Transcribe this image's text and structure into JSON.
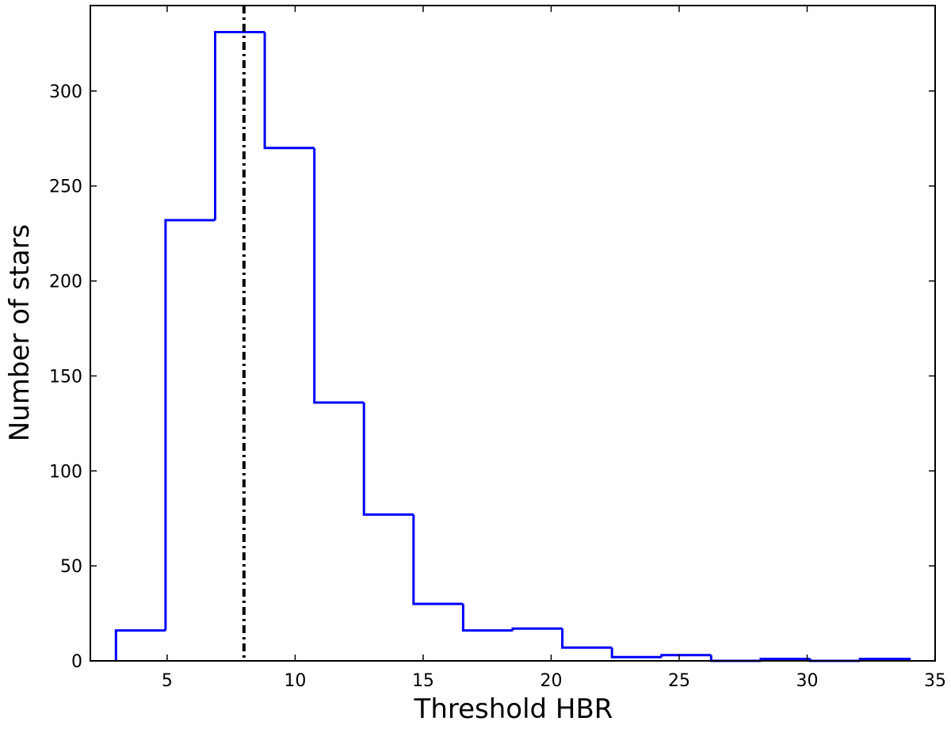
{
  "chart_data": {
    "type": "histogram",
    "xlabel": "Threshold HBR",
    "ylabel": "Number of stars",
    "bins": [
      3,
      4.9375,
      6.875,
      8.8125,
      10.75,
      12.6875,
      14.625,
      16.5625,
      18.5,
      20.4375,
      22.375,
      24.3125,
      26.25,
      28.1875,
      30.125,
      32.0625,
      34
    ],
    "values": [
      16,
      232,
      331,
      270,
      136,
      77,
      30,
      16,
      17,
      7,
      2,
      3,
      0,
      1,
      0,
      1
    ],
    "color": "#0000ff",
    "vline": {
      "x": 8,
      "color": "#000000",
      "style": "dashdot"
    },
    "xlim": [
      2,
      35
    ],
    "xticks": [
      5,
      10,
      15,
      20,
      25,
      30,
      35
    ],
    "ylim": [
      0,
      345
    ],
    "yticks": [
      0,
      50,
      100,
      150,
      200,
      250,
      300
    ],
    "grid": false
  }
}
